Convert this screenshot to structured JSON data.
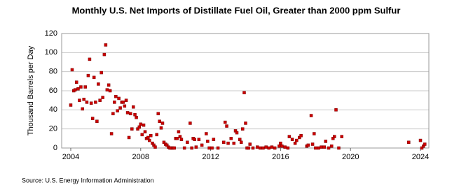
{
  "chart_data": {
    "type": "scatter",
    "title": "Monthly U.S. Net Imports of Distillate Fuel Oil, Greater than 2000 ppm Sulfur",
    "y_label": "Thousand Barrels per Day",
    "source": "Source: U.S. Energy Information Administration",
    "color": "#cc0000",
    "grid": true,
    "xlim": [
      2003.48,
      2024.48
    ],
    "xticks": [
      2004,
      2008,
      2012,
      2016,
      2020,
      2024
    ],
    "ylim": [
      0,
      120
    ],
    "yticks": [
      0,
      20,
      40,
      60,
      80,
      100,
      120
    ],
    "x": [
      2004.0,
      2004.08,
      2004.17,
      2004.25,
      2004.33,
      2004.42,
      2004.5,
      2004.58,
      2004.67,
      2004.75,
      2004.83,
      2004.92,
      2005.0,
      2005.08,
      2005.17,
      2005.25,
      2005.33,
      2005.42,
      2005.5,
      2005.58,
      2005.67,
      2005.75,
      2005.83,
      2005.92,
      2006.0,
      2006.08,
      2006.17,
      2006.25,
      2006.33,
      2006.42,
      2006.5,
      2006.58,
      2006.67,
      2006.75,
      2006.83,
      2006.92,
      2007.0,
      2007.08,
      2007.17,
      2007.25,
      2007.33,
      2007.42,
      2007.5,
      2007.58,
      2007.67,
      2007.75,
      2007.83,
      2007.92,
      2008.0,
      2008.08,
      2008.17,
      2008.25,
      2008.33,
      2008.42,
      2008.5,
      2008.58,
      2008.67,
      2008.75,
      2008.83,
      2008.92,
      2009.0,
      2009.08,
      2009.17,
      2009.25,
      2009.33,
      2009.42,
      2009.5,
      2009.58,
      2009.67,
      2009.75,
      2009.83,
      2009.92,
      2010.0,
      2010.08,
      2010.17,
      2010.25,
      2010.33,
      2010.5,
      2010.67,
      2010.83,
      2010.92,
      2011.0,
      2011.08,
      2011.17,
      2011.33,
      2011.5,
      2011.75,
      2011.83,
      2011.92,
      2012.08,
      2012.17,
      2012.42,
      2012.75,
      2012.83,
      2012.92,
      2013.0,
      2013.17,
      2013.33,
      2013.42,
      2013.5,
      2013.67,
      2013.75,
      2013.83,
      2013.92,
      2014.0,
      2014.08,
      2014.17,
      2014.25,
      2014.42,
      2014.67,
      2014.83,
      2015.0,
      2015.17,
      2015.33,
      2015.5,
      2015.67,
      2015.92,
      2016.0,
      2016.08,
      2016.25,
      2016.42,
      2016.5,
      2016.67,
      2016.83,
      2016.92,
      2017.08,
      2017.17,
      2017.5,
      2017.58,
      2017.75,
      2017.83,
      2017.92,
      2018.0,
      2018.17,
      2018.33,
      2018.5,
      2018.58,
      2018.75,
      2018.92,
      2019.0,
      2019.08,
      2019.17,
      2019.33,
      2019.5,
      2023.33,
      2024.0,
      2024.08,
      2024.17,
      2024.25
    ],
    "values": [
      45,
      82,
      60,
      61,
      69,
      62,
      50,
      64,
      41,
      51,
      64,
      48,
      76,
      93,
      47,
      31,
      74,
      48,
      28,
      67,
      50,
      79,
      53,
      98,
      108,
      61,
      66,
      60,
      15,
      36,
      48,
      54,
      39,
      52,
      42,
      48,
      48,
      44,
      50,
      37,
      11,
      36,
      20,
      43,
      35,
      32,
      20,
      22,
      25,
      14,
      24,
      17,
      10,
      11,
      8,
      13,
      5,
      3,
      1,
      14,
      36,
      28,
      21,
      26,
      6,
      4,
      3,
      1,
      0,
      0,
      0,
      0,
      10,
      10,
      17,
      12,
      9,
      0,
      6,
      26,
      0,
      10,
      9,
      1,
      9,
      3,
      15,
      7,
      0,
      0,
      9,
      0,
      6,
      27,
      23,
      5,
      10,
      5,
      18,
      16,
      9,
      6,
      20,
      58,
      26,
      0,
      0,
      4,
      0,
      1,
      0,
      0,
      1,
      0,
      1,
      0,
      2,
      5,
      2,
      1,
      0,
      12,
      9,
      5,
      8,
      11,
      13,
      2,
      3,
      34,
      4,
      15,
      0,
      0,
      1,
      1,
      7,
      0,
      2,
      10,
      12,
      40,
      0,
      12,
      6,
      8,
      0,
      2,
      4
    ]
  }
}
